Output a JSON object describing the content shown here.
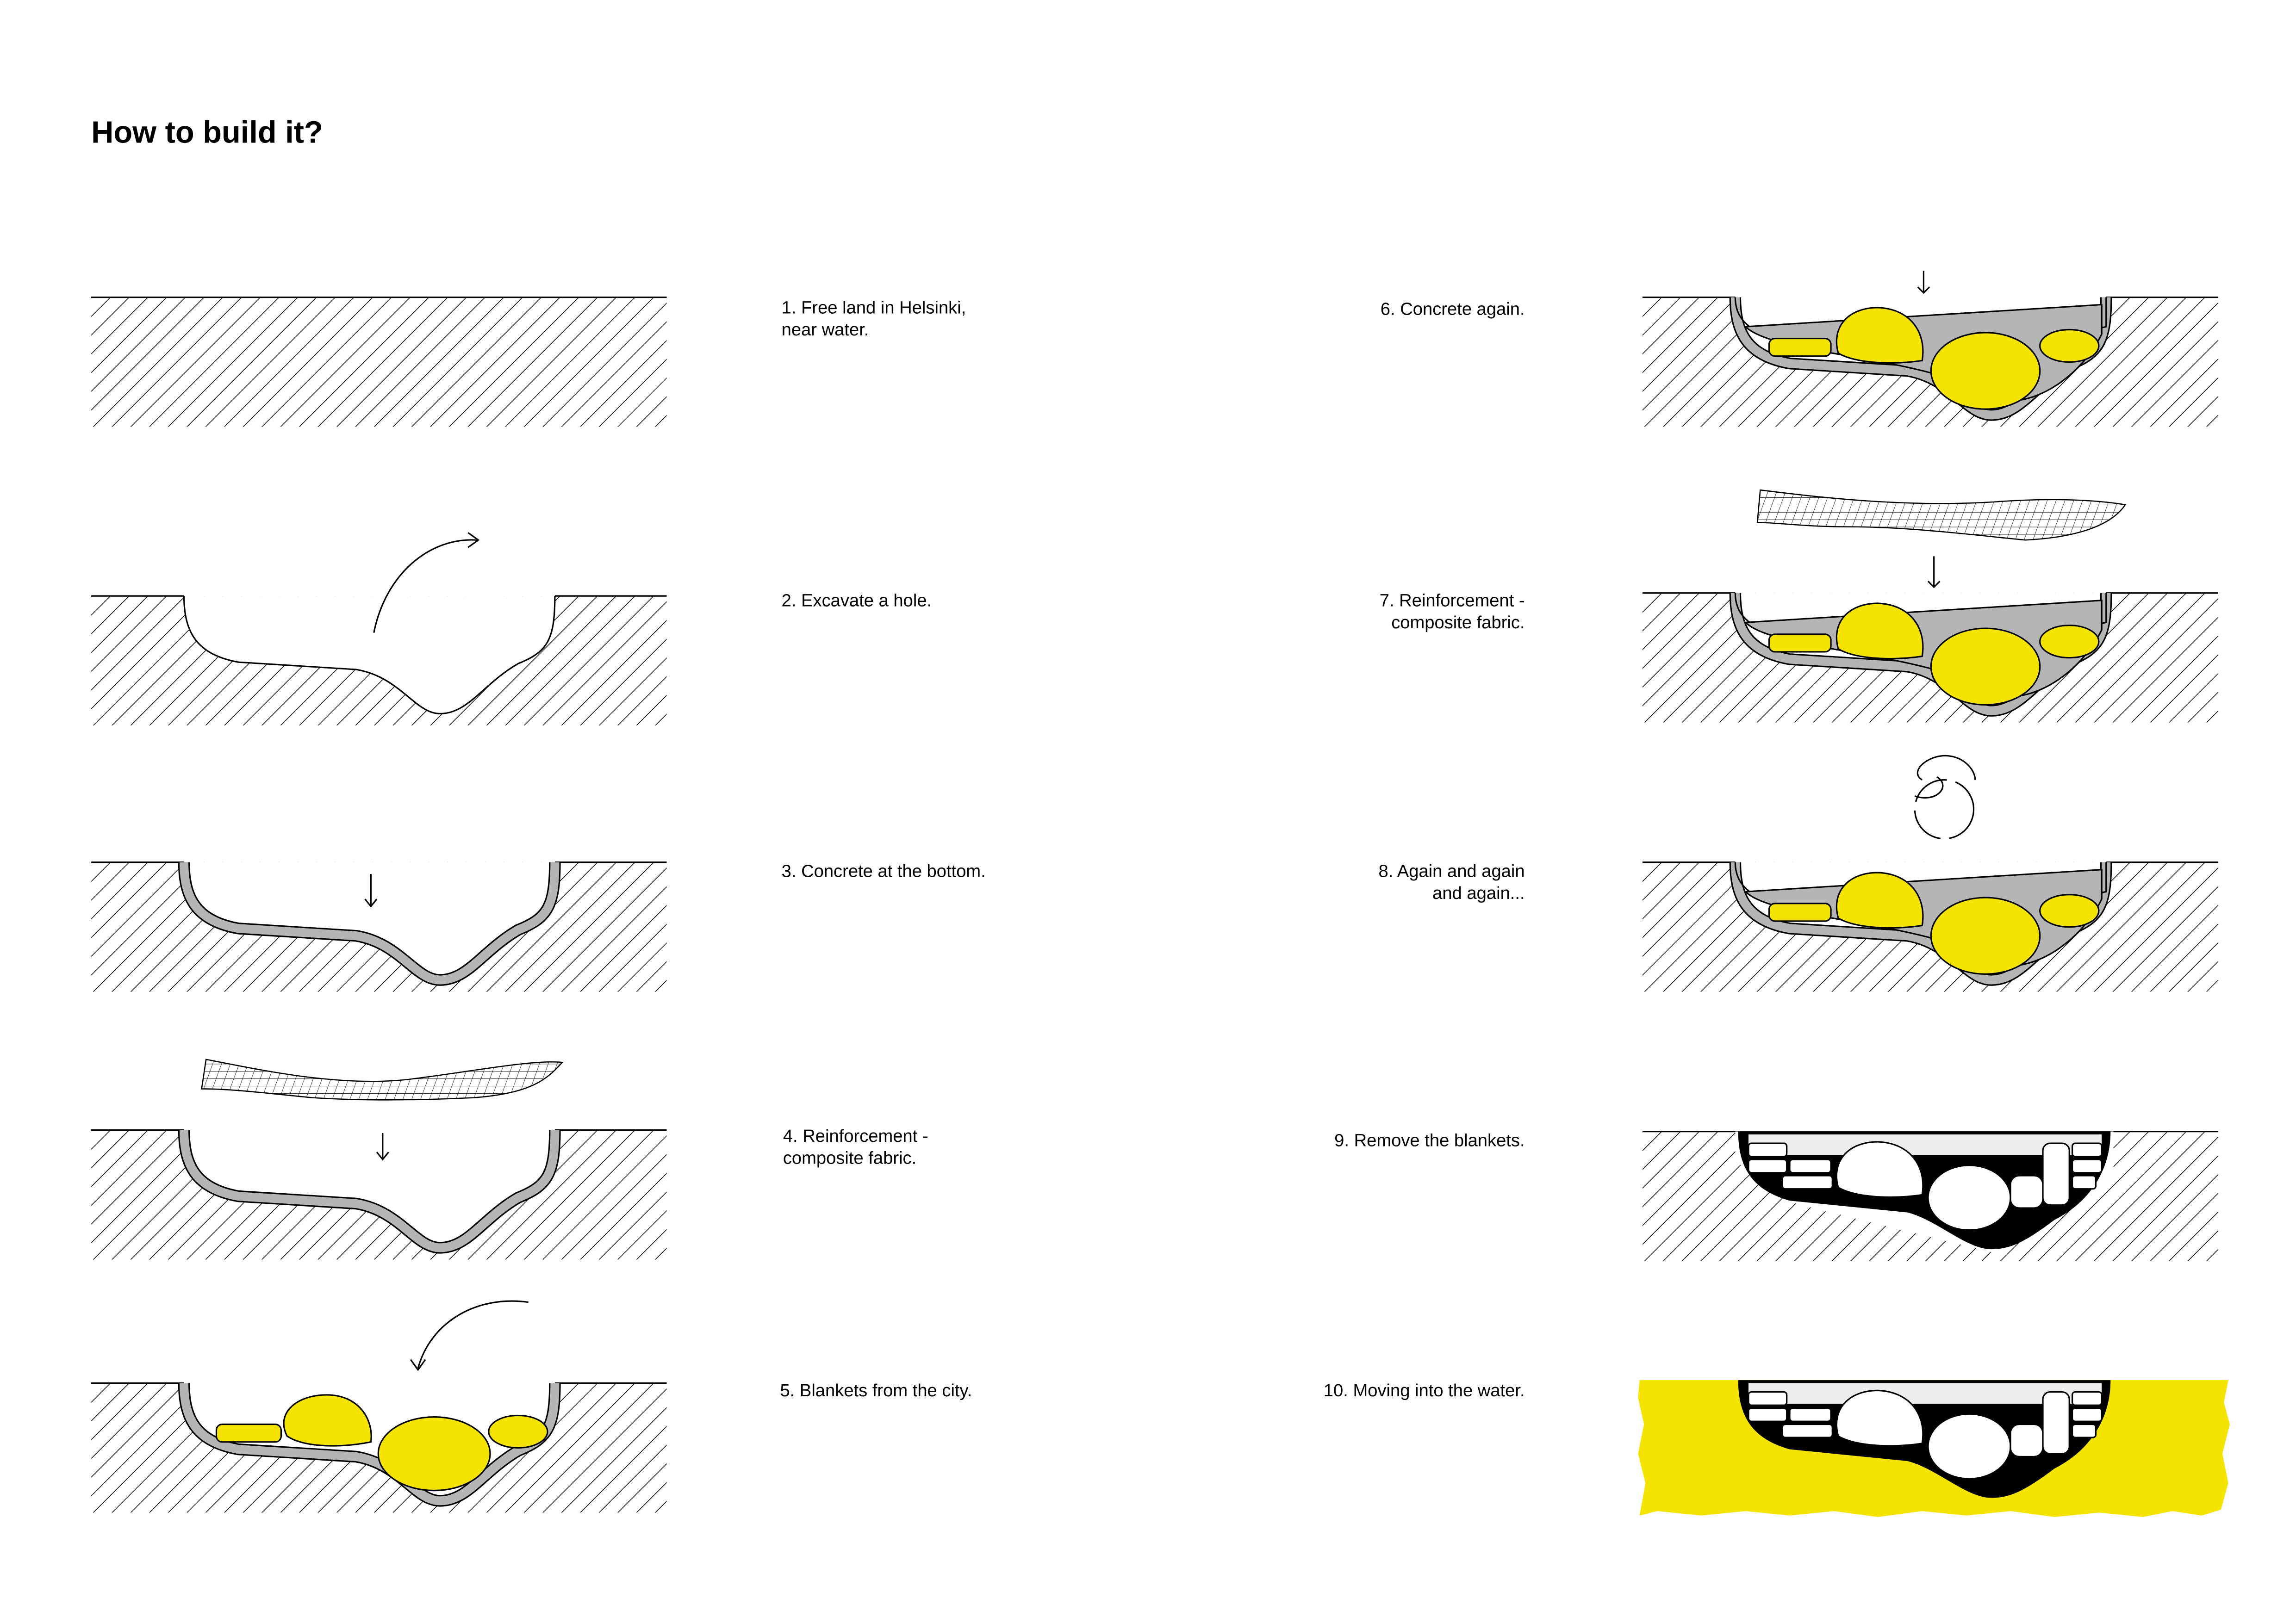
{
  "page": {
    "title": "How to build it?"
  },
  "colors": {
    "accent_yellow": "#f5e400",
    "concrete_gray": "#b5b5b5",
    "ink": "#000000"
  },
  "steps": [
    {
      "line1": "1. Free land in Helsinki,",
      "line2": "near water."
    },
    {
      "line1": "2. Excavate a hole.",
      "line2": ""
    },
    {
      "line1": "3. Concrete at the bottom.",
      "line2": ""
    },
    {
      "line1": "4. Reinforcement -",
      "line2": "composite fabric."
    },
    {
      "line1": "5. Blankets from the city.",
      "line2": ""
    },
    {
      "line1": "6. Concrete again.",
      "line2": ""
    },
    {
      "line1": "7. Reinforcement -",
      "line2": "composite fabric."
    },
    {
      "line1": "8. Again and again",
      "line2": "and again..."
    },
    {
      "line1": "9. Remove the blankets.",
      "line2": ""
    },
    {
      "line1": "10. Moving into the water.",
      "line2": ""
    }
  ]
}
